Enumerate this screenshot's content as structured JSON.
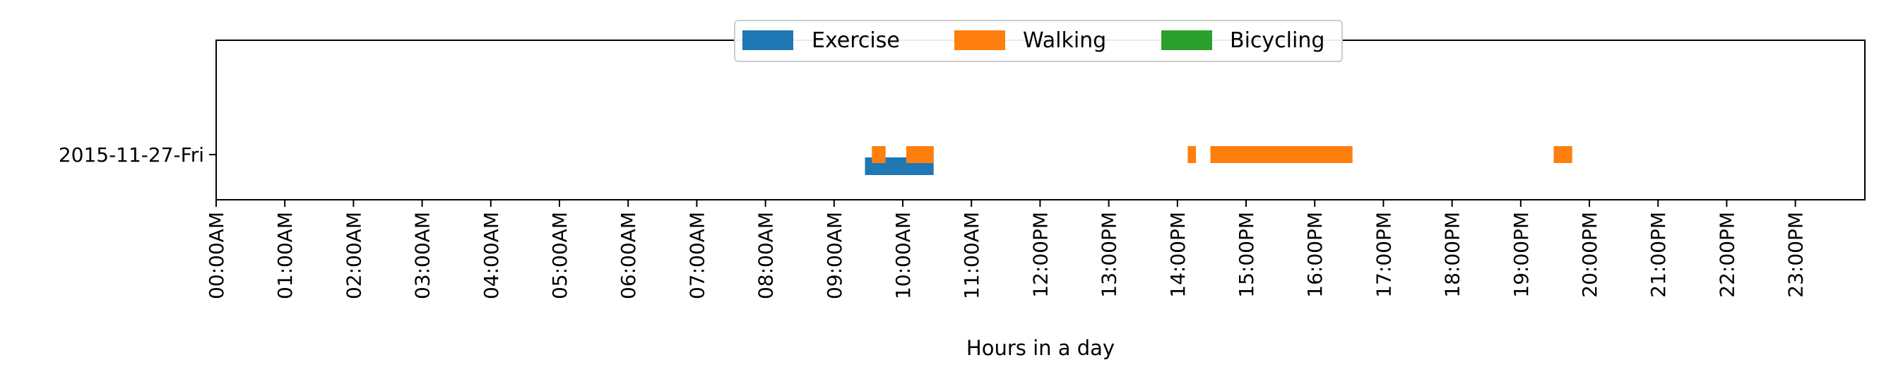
{
  "chart_data": {
    "type": "timeline",
    "title": "",
    "xlabel": "Hours in a day",
    "ylabel": "",
    "xlim": [
      0,
      24
    ],
    "xtick_labels": [
      "00:00AM",
      "01:00AM",
      "02:00AM",
      "03:00AM",
      "04:00AM",
      "05:00AM",
      "06:00AM",
      "07:00AM",
      "08:00AM",
      "09:00AM",
      "10:00AM",
      "11:00AM",
      "12:00PM",
      "13:00PM",
      "14:00PM",
      "15:00PM",
      "16:00PM",
      "17:00PM",
      "18:00PM",
      "19:00PM",
      "20:00PM",
      "21:00PM",
      "22:00PM",
      "23:00PM"
    ],
    "categories": [
      "2015-11-27-Fri"
    ],
    "grid": false,
    "legend_position": "top-center",
    "series": [
      {
        "name": "Exercise",
        "color": "#1f77b4",
        "intervals": [
          [
            9.45,
            10.45
          ]
        ]
      },
      {
        "name": "Walking",
        "color": "#ff7f0e",
        "intervals": [
          [
            9.55,
            9.75
          ],
          [
            10.05,
            10.45
          ],
          [
            14.15,
            14.27
          ],
          [
            14.48,
            16.55
          ],
          [
            19.48,
            19.75
          ]
        ]
      },
      {
        "name": "Bicycling",
        "color": "#2ca02c",
        "intervals": []
      }
    ]
  }
}
